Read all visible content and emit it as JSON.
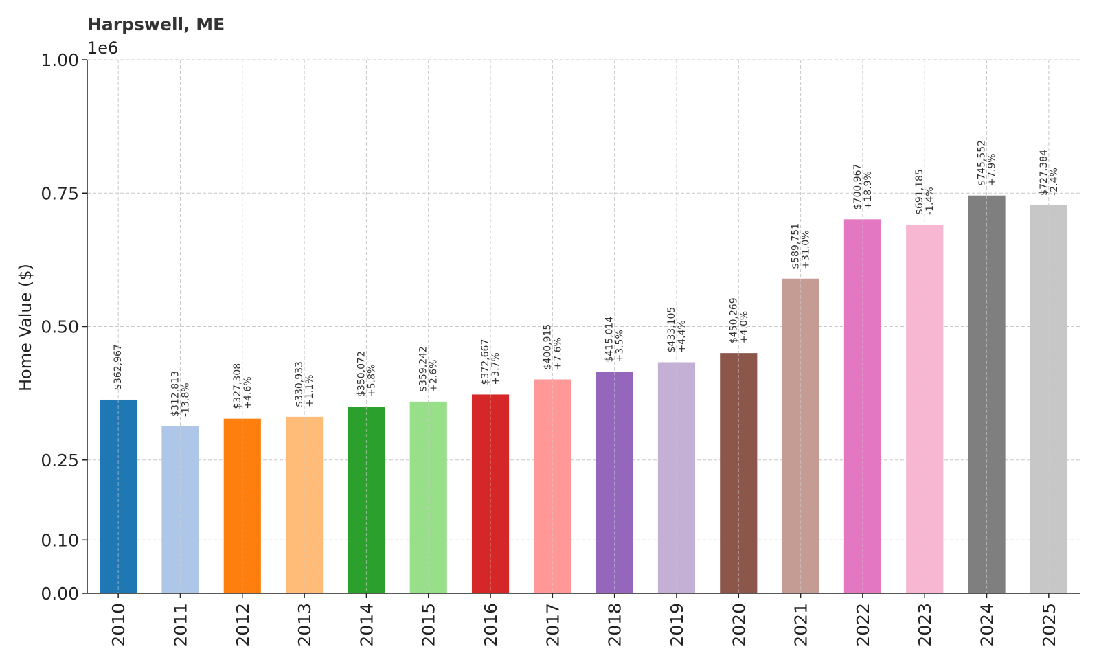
{
  "chart_data": {
    "type": "bar",
    "title": "Harpswell, ME",
    "xlabel": "",
    "ylabel": "Home Value ($)",
    "y_offset_label": "1e6",
    "ylim": [
      0,
      1000000
    ],
    "yticks": [
      0,
      100000,
      250000,
      500000,
      750000,
      1000000
    ],
    "ytick_labels": [
      "0.00",
      "0.10",
      "0.25",
      "0.50",
      "0.75",
      "1.00"
    ],
    "grid": true,
    "categories": [
      "2010",
      "2011",
      "2012",
      "2013",
      "2014",
      "2015",
      "2016",
      "2017",
      "2018",
      "2019",
      "2020",
      "2021",
      "2022",
      "2023",
      "2024",
      "2025"
    ],
    "values": [
      362967,
      312813,
      327308,
      330933,
      350072,
      359242,
      372667,
      400915,
      415014,
      433105,
      450269,
      589751,
      700967,
      691185,
      745552,
      727384
    ],
    "value_labels": [
      "$362,967",
      "$312,813",
      "$327,308",
      "$330,933",
      "$350,072",
      "$359,242",
      "$372,667",
      "$400,915",
      "$415,014",
      "$433,105",
      "$450,269",
      "$589,751",
      "$700,967",
      "$691,185",
      "$745,552",
      "$727,384"
    ],
    "change_labels": [
      "",
      "-13.8%",
      "+4.6%",
      "+1.1%",
      "+5.8%",
      "+2.6%",
      "+3.7%",
      "+7.6%",
      "+3.5%",
      "+4.4%",
      "+4.0%",
      "+31.0%",
      "+18.9%",
      "-1.4%",
      "+7.9%",
      "-2.4%"
    ],
    "colors": [
      "#1f77b4",
      "#aec7e8",
      "#ff7f0e",
      "#ffbb78",
      "#2ca02c",
      "#98df8a",
      "#d62728",
      "#ff9896",
      "#9467bd",
      "#c5b0d5",
      "#8c564b",
      "#c49c94",
      "#e377c2",
      "#f7b6d2",
      "#7f7f7f",
      "#c7c7c7"
    ]
  }
}
